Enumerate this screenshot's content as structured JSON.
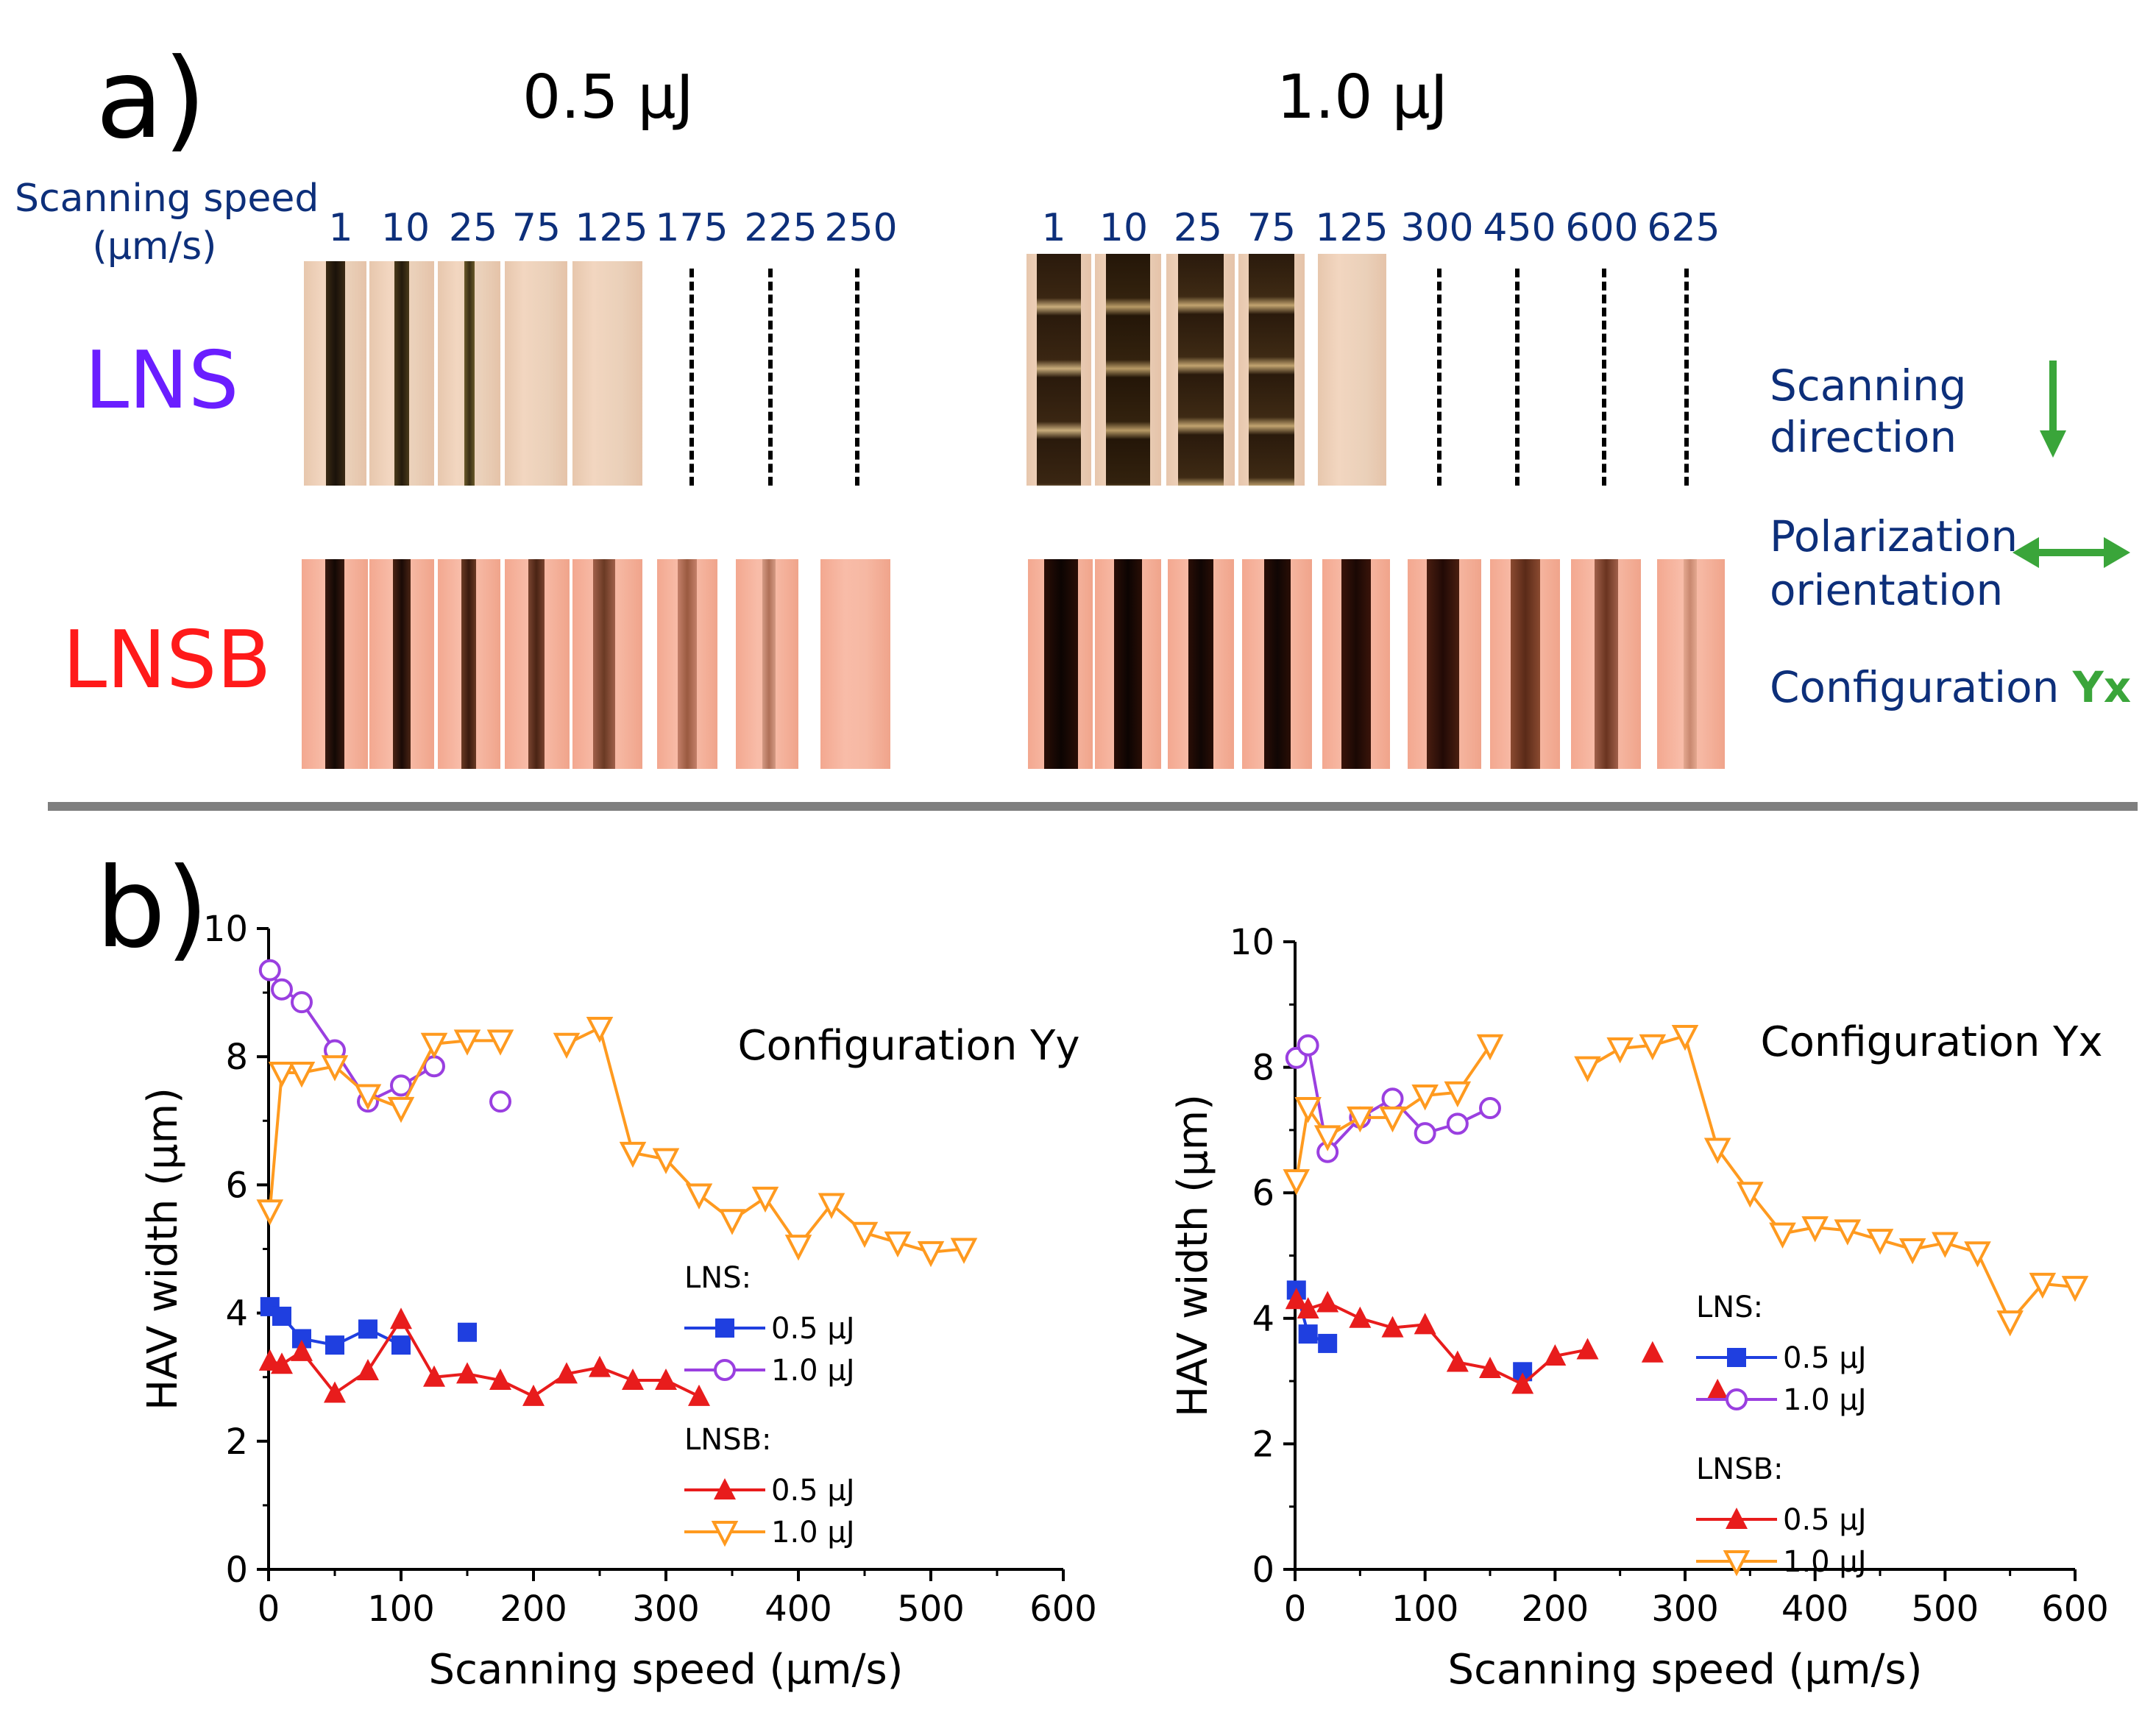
{
  "panel_a": {
    "label": "a)",
    "energy_labels": [
      "0.5 μJ",
      "1.0 μJ"
    ],
    "speed_label_line1": "Scanning speed",
    "speed_label_line2": "(μm/s)",
    "speeds_05": [
      "1",
      "10",
      "25",
      "75",
      "125",
      "175",
      "225",
      "250"
    ],
    "speeds_10": [
      "1",
      "10",
      "25",
      "75",
      "125",
      "300",
      "450",
      "600",
      "625"
    ],
    "row_labels": {
      "lns": "LNS",
      "lnsb": "LNSB"
    },
    "colors": {
      "lns_label": "#6a1eff",
      "lnsb_label": "#ff1a1a",
      "green": "#3aa53a",
      "navy": "#0d2f7a"
    },
    "legend": {
      "scan_line1": "Scanning",
      "scan_line2": "direction",
      "pol_line1": "Polarization",
      "pol_line2": "orientation",
      "config_prefix": "Configuration",
      "config_value": "Yx"
    }
  },
  "panel_b": {
    "label": "b)"
  },
  "chart_data": [
    {
      "type": "line",
      "title": "Configuration Yy",
      "xlabel": "Scanning speed (μm/s)",
      "ylabel": "HAV width (μm)",
      "xlim": [
        0,
        600
      ],
      "ylim": [
        0,
        10
      ],
      "xticks": [
        0,
        100,
        200,
        300,
        400,
        500,
        600
      ],
      "yticks": [
        0,
        2,
        4,
        6,
        8,
        10
      ],
      "legend": {
        "group1": "LNS:",
        "group2": "LNSB:",
        "e1": "0.5 μJ",
        "e2": "1.0 μJ"
      },
      "series": [
        {
          "name": "LNS 0.5 μJ",
          "marker": "square",
          "color": "#1f3fe0",
          "segments": [
            {
              "x": [
                1,
                10,
                25,
                50,
                75,
                100
              ],
              "y": [
                4.1,
                3.95,
                3.6,
                3.5,
                3.75,
                3.5
              ]
            },
            {
              "x": [
                150
              ],
              "y": [
                3.7
              ]
            }
          ]
        },
        {
          "name": "LNS 1.0 μJ",
          "marker": "circle",
          "color": "#9a3fe0",
          "segments": [
            {
              "x": [
                1,
                10,
                25,
                50,
                75,
                100,
                125
              ],
              "y": [
                9.35,
                9.05,
                8.85,
                8.1,
                7.3,
                7.55,
                7.85
              ]
            },
            {
              "x": [
                175
              ],
              "y": [
                7.3
              ]
            }
          ]
        },
        {
          "name": "LNSB 0.5 μJ",
          "marker": "triangle-up",
          "color": "#e81c1c",
          "segments": [
            {
              "x": [
                1,
                10,
                25,
                50,
                75,
                100,
                125,
                150,
                175,
                200,
                225,
                250,
                275,
                300,
                325
              ],
              "y": [
                3.25,
                3.2,
                3.4,
                2.75,
                3.1,
                3.9,
                3.0,
                3.05,
                2.95,
                2.7,
                3.05,
                3.15,
                2.95,
                2.95,
                2.7
              ]
            }
          ]
        },
        {
          "name": "LNSB 1.0 μJ",
          "marker": "triangle-down",
          "color": "#ff9a1f",
          "segments": [
            {
              "x": [
                1,
                10,
                25,
                50,
                75,
                100,
                125,
                150,
                175
              ],
              "y": [
                5.6,
                7.75,
                7.75,
                7.85,
                7.4,
                7.2,
                8.2,
                8.25,
                8.25
              ]
            },
            {
              "x": [
                225,
                250,
                275,
                300,
                325,
                350,
                375,
                400,
                425,
                450,
                475,
                500,
                525
              ],
              "y": [
                8.2,
                8.45,
                6.5,
                6.4,
                5.85,
                5.45,
                5.8,
                5.05,
                5.7,
                5.25,
                5.1,
                4.95,
                5.0
              ]
            }
          ]
        }
      ]
    },
    {
      "type": "line",
      "title": "Configuration Yx",
      "xlabel": "Scanning speed (μm/s)",
      "ylabel": "HAV width (μm)",
      "xlim": [
        0,
        600
      ],
      "ylim": [
        0,
        10
      ],
      "xticks": [
        0,
        100,
        200,
        300,
        400,
        500,
        600
      ],
      "yticks": [
        0,
        2,
        4,
        6,
        8,
        10
      ],
      "legend": {
        "group1": "LNS:",
        "group2": "LNSB:",
        "e1": "0.5 μJ",
        "e2": "1.0 μJ"
      },
      "series": [
        {
          "name": "LNS 0.5 μJ",
          "marker": "square",
          "color": "#1f3fe0",
          "segments": [
            {
              "x": [
                1,
                10,
                25
              ],
              "y": [
                4.45,
                3.75,
                3.6
              ]
            },
            {
              "x": [
                175
              ],
              "y": [
                3.15
              ]
            }
          ]
        },
        {
          "name": "LNS 1.0 μJ",
          "marker": "circle",
          "color": "#9a3fe0",
          "segments": [
            {
              "x": [
                1,
                10,
                25,
                50,
                75,
                100,
                125,
                150
              ],
              "y": [
                8.15,
                8.35,
                6.65,
                7.2,
                7.5,
                6.95,
                7.1,
                7.35
              ]
            }
          ]
        },
        {
          "name": "LNSB 0.5 μJ",
          "marker": "triangle-up",
          "color": "#e81c1c",
          "segments": [
            {
              "x": [
                1,
                10,
                25,
                50,
                75,
                100,
                125,
                150,
                175,
                200,
                225
              ],
              "y": [
                4.3,
                4.15,
                4.25,
                4.0,
                3.85,
                3.9,
                3.3,
                3.2,
                2.95,
                3.4,
                3.5
              ]
            },
            {
              "x": [
                275
              ],
              "y": [
                3.45
              ]
            },
            {
              "x": [
                325
              ],
              "y": [
                2.85
              ]
            }
          ]
        },
        {
          "name": "LNSB 1.0 μJ",
          "marker": "triangle-down",
          "color": "#ff9a1f",
          "segments": [
            {
              "x": [
                1,
                10,
                25,
                50,
                75,
                100,
                125,
                150
              ],
              "y": [
                6.2,
                7.35,
                6.9,
                7.2,
                7.2,
                7.55,
                7.6,
                8.35
              ]
            },
            {
              "x": [
                225,
                250,
                275,
                300,
                325,
                350,
                375,
                400,
                425,
                450,
                475,
                500,
                525,
                550,
                575,
                600
              ],
              "y": [
                8.0,
                8.3,
                8.35,
                8.5,
                6.7,
                6.0,
                5.35,
                5.45,
                5.4,
                5.25,
                5.1,
                5.2,
                5.05,
                3.95,
                4.55,
                4.5
              ]
            }
          ]
        }
      ]
    }
  ]
}
